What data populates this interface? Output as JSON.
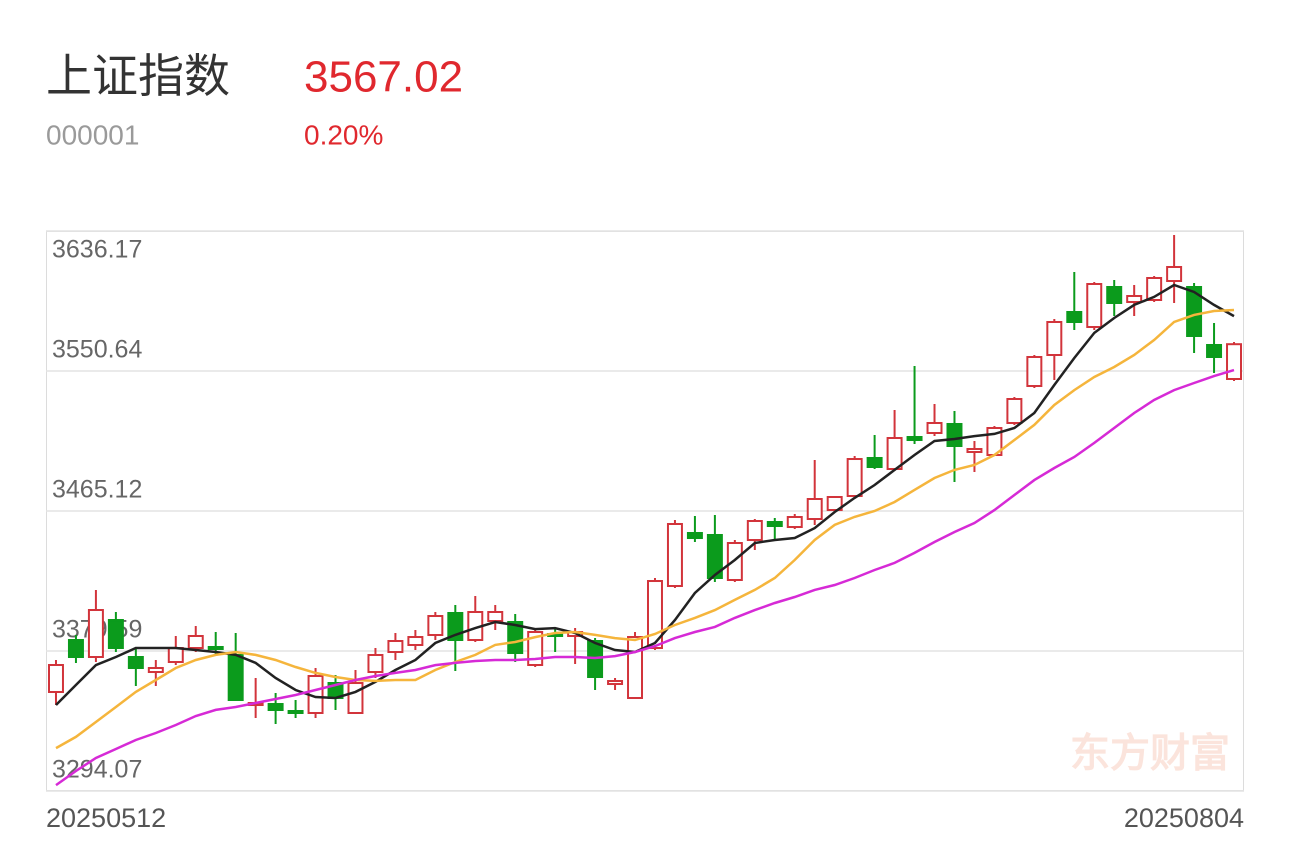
{
  "chart_data": {
    "type": "candlestick",
    "title": "上证指数",
    "code": "000001",
    "price": 3567.02,
    "change": {
      "value": 0.2,
      "label": "0.20%"
    },
    "watermark": "东方财富",
    "up_color": "#d2343b",
    "down_color": "#0b9b1c",
    "quote_color": "#e0282e",
    "ylim": [
      3294.07,
      3636.17
    ],
    "yticks": [
      3636.17,
      3550.64,
      3465.12,
      3379.59,
      3294.07
    ],
    "grid": true,
    "categories": [
      "20250512",
      null,
      null,
      null,
      null,
      null,
      null,
      null,
      null,
      null,
      null,
      null,
      null,
      null,
      null,
      null,
      null,
      null,
      null,
      null,
      null,
      null,
      null,
      null,
      null,
      null,
      null,
      null,
      null,
      null,
      null,
      null,
      null,
      null,
      null,
      null,
      null,
      null,
      null,
      null,
      null,
      null,
      null,
      null,
      null,
      null,
      null,
      null,
      null,
      null,
      null,
      null,
      null,
      null,
      null,
      null,
      null,
      null,
      null,
      "20250804"
    ],
    "open": [
      3354.55,
      3386.31,
      3375.93,
      3398.53,
      3375.93,
      3366.76,
      3372.87,
      3381.42,
      3382.04,
      3377.15,
      3346.6,
      3347.21,
      3342.94,
      3341.72,
      3360.04,
      3341.72,
      3366.76,
      3378.98,
      3383.26,
      3389.37,
      3402.81,
      3386.31,
      3397.92,
      3397.31,
      3371.04,
      3389.98,
      3388.76,
      3385.7,
      3359.43,
      3350.88,
      3381.42,
      3419.3,
      3451.68,
      3450.46,
      3422.97,
      3447.4,
      3458.4,
      3455.34,
      3460.23,
      3465.73,
      3474.28,
      3497.5,
      3490.78,
      3510.32,
      3512.77,
      3518.27,
      3501.16,
      3499.33,
      3518.88,
      3541.48,
      3560.42,
      3586.69,
      3577.52,
      3601.96,
      3592.8,
      3594.02,
      3605.62,
      3601.96,
      3566.53,
      3545.76
    ],
    "high": [
      3374.09,
      3389.37,
      3416.86,
      3403.42,
      3381.42,
      3374.09,
      3388.76,
      3394.86,
      3391.2,
      3390.59,
      3363.1,
      3353.93,
      3349.66,
      3369.21,
      3364.93,
      3367.99,
      3381.42,
      3390.59,
      3392.42,
      3403.42,
      3407.69,
      3413.19,
      3407.69,
      3402.2,
      3392.42,
      3393.64,
      3393.64,
      3387.53,
      3363.1,
      3391.2,
      3424.19,
      3459.62,
      3462.06,
      3462.67,
      3447.4,
      3460.23,
      3460.84,
      3463.29,
      3496.27,
      3474.28,
      3498.72,
      3511.55,
      3526.82,
      3553.7,
      3530.48,
      3526.21,
      3507.88,
      3517.04,
      3534.76,
      3560.42,
      3582.41,
      3611.12,
      3605.01,
      3606.24,
      3603.18,
      3608.68,
      3633.73,
      3604.4,
      3579.97,
      3568.36
    ],
    "low": [
      3346.6,
      3372.26,
      3372.87,
      3378.98,
      3358.21,
      3358.21,
      3371.04,
      3378.98,
      3377.15,
      3349.66,
      3338.66,
      3335.0,
      3338.66,
      3338.66,
      3343.55,
      3341.72,
      3363.1,
      3374.09,
      3380.2,
      3386.31,
      3367.37,
      3385.09,
      3392.42,
      3372.87,
      3369.82,
      3378.98,
      3371.65,
      3355.77,
      3355.77,
      3350.27,
      3380.2,
      3418.08,
      3446.18,
      3421.74,
      3421.74,
      3441.29,
      3447.4,
      3454.12,
      3456.57,
      3464.51,
      3473.06,
      3490.78,
      3489.55,
      3506.05,
      3510.94,
      3482.83,
      3488.94,
      3498.72,
      3517.66,
      3540.26,
      3545.15,
      3575.69,
      3575.69,
      3584.24,
      3584.24,
      3592.8,
      3592.19,
      3561.64,
      3549.42,
      3544.54
    ],
    "close": [
      3371.04,
      3375.93,
      3404.64,
      3381.42,
      3369.21,
      3369.21,
      3381.42,
      3388.76,
      3380.81,
      3349.66,
      3347.83,
      3343.55,
      3341.72,
      3364.32,
      3350.88,
      3360.04,
      3377.15,
      3385.7,
      3388.14,
      3400.97,
      3386.31,
      3403.42,
      3403.42,
      3378.37,
      3391.2,
      3388.76,
      3391.2,
      3363.71,
      3361.26,
      3388.14,
      3422.35,
      3457.18,
      3448.62,
      3424.19,
      3445.57,
      3459.01,
      3455.95,
      3461.45,
      3472.45,
      3473.67,
      3496.88,
      3492.0,
      3509.71,
      3508.49,
      3518.88,
      3504.83,
      3502.99,
      3515.82,
      3533.54,
      3559.2,
      3580.58,
      3580.58,
      3603.79,
      3592.19,
      3596.46,
      3607.46,
      3614.18,
      3572.03,
      3559.2,
      3567.02
    ],
    "series": [
      {
        "color": "#222222",
        "values": [
          3346.6,
          3358.8,
          3371.0,
          3375.9,
          3381.4,
          3381.4,
          3381.4,
          3380.2,
          3379.0,
          3377.2,
          3372.3,
          3363.1,
          3355.8,
          3351.5,
          3350.9,
          3354.6,
          3360.7,
          3368.0,
          3374.1,
          3384.5,
          3389.4,
          3393.6,
          3397.3,
          3395.5,
          3393.0,
          3393.6,
          3390.6,
          3384.5,
          3380.2,
          3379.0,
          3384.5,
          3398.5,
          3415.0,
          3426.0,
          3435.2,
          3445.6,
          3447.4,
          3448.6,
          3454.7,
          3464.5,
          3473.1,
          3481.0,
          3490.2,
          3499.3,
          3507.9,
          3509.1,
          3510.9,
          3512.2,
          3515.8,
          3525.0,
          3542.1,
          3558.6,
          3573.9,
          3583.0,
          3591.0,
          3595.9,
          3603.2,
          3598.9,
          3591.0,
          3584.2
        ]
      },
      {
        "color": "#f5b53c",
        "values": [
          3320.3,
          3327.1,
          3336.2,
          3345.4,
          3354.6,
          3361.9,
          3369.2,
          3374.1,
          3377.2,
          3379.0,
          3377.2,
          3374.1,
          3369.8,
          3366.2,
          3363.7,
          3361.9,
          3361.3,
          3361.9,
          3361.9,
          3368.0,
          3372.9,
          3377.2,
          3383.3,
          3385.1,
          3388.1,
          3390.6,
          3391.2,
          3389.4,
          3387.5,
          3386.3,
          3390.0,
          3395.5,
          3399.8,
          3404.6,
          3410.8,
          3416.9,
          3424.2,
          3435.2,
          3447.4,
          3456.6,
          3461.5,
          3465.1,
          3470.6,
          3478.0,
          3485.3,
          3490.2,
          3493.2,
          3499.3,
          3508.5,
          3517.7,
          3529.9,
          3539.0,
          3547.0,
          3553.1,
          3560.4,
          3569.6,
          3580.6,
          3584.9,
          3587.3,
          3587.9
        ]
      },
      {
        "color": "#d62ad6",
        "values": [
          3297.7,
          3306.3,
          3314.2,
          3319.7,
          3325.2,
          3329.5,
          3334.4,
          3339.9,
          3343.6,
          3345.4,
          3347.8,
          3350.3,
          3352.7,
          3355.8,
          3358.8,
          3361.9,
          3364.3,
          3366.2,
          3368.0,
          3371.0,
          3372.3,
          3373.5,
          3374.1,
          3374.1,
          3374.7,
          3375.9,
          3375.9,
          3375.3,
          3376.5,
          3379.0,
          3382.6,
          3387.5,
          3391.2,
          3394.3,
          3399.8,
          3404.6,
          3408.9,
          3412.6,
          3416.9,
          3419.9,
          3424.2,
          3429.1,
          3433.4,
          3439.5,
          3446.2,
          3452.3,
          3457.8,
          3465.7,
          3474.9,
          3484.0,
          3491.4,
          3498.1,
          3506.7,
          3515.8,
          3525.0,
          3532.9,
          3539.0,
          3543.3,
          3547.5,
          3551.2
        ]
      }
    ]
  }
}
